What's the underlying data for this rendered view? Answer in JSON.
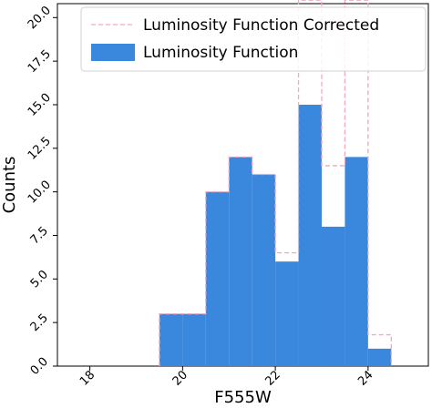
{
  "chart_data": {
    "type": "bar",
    "xlabel": "F555W",
    "ylabel": "Counts",
    "xlim": [
      17.3,
      25.3
    ],
    "ylim": [
      0,
      20.8
    ],
    "xticks": [
      "18",
      "20",
      "22",
      "24"
    ],
    "yticks": [
      "0.0",
      "2.5",
      "5.0",
      "7.5",
      "10.0",
      "12.5",
      "15.0",
      "17.5",
      "20.0"
    ],
    "bin_edges": [
      19.5,
      20.0,
      20.5,
      21.0,
      21.5,
      22.0,
      22.5,
      23.0,
      23.5,
      24.0,
      24.5
    ],
    "legend_position": "top-right",
    "series": [
      {
        "name": "Luminosity Function",
        "style": "filled",
        "color": "#3a87de",
        "values": [
          3,
          3,
          10,
          12,
          11,
          6,
          15,
          8,
          12,
          1
        ]
      },
      {
        "name": "Luminosity Function Corrected",
        "style": "dashed-step",
        "color": "#f4a6bc",
        "values": [
          3,
          3,
          10,
          12,
          11,
          6.5,
          21,
          11.5,
          21,
          1.8
        ]
      }
    ]
  }
}
